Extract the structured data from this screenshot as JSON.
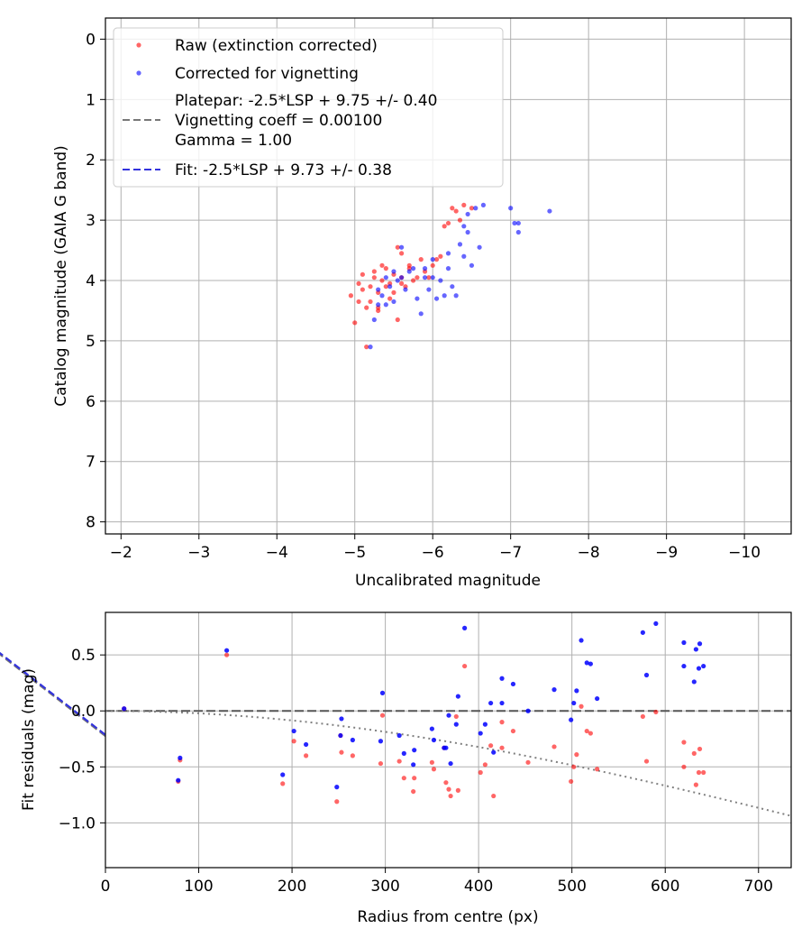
{
  "chart_data": [
    {
      "type": "scatter",
      "title": "",
      "xlabel": "Uncalibrated magnitude",
      "ylabel": "Catalog magnitude (GAIA G band)",
      "xlim": [
        -1.8,
        -10.6
      ],
      "ylim": [
        8.2,
        -0.35
      ],
      "x_inverted": true,
      "y_inverted": true,
      "grid": true,
      "xticks": [
        -2,
        -3,
        -4,
        -5,
        -6,
        -7,
        -8,
        -9,
        -10
      ],
      "xtick_labels": [
        "−2",
        "−3",
        "−4",
        "−5",
        "−6",
        "−7",
        "−8",
        "−9",
        "−10"
      ],
      "yticks": [
        0,
        1,
        2,
        3,
        4,
        5,
        6,
        7,
        8
      ],
      "ytick_labels": [
        "0",
        "1",
        "2",
        "3",
        "4",
        "5",
        "6",
        "7",
        "8"
      ],
      "legend_position": "top-left",
      "legend": [
        {
          "label": "Raw (extinction corrected)",
          "kind": "marker",
          "color": "#ff0000"
        },
        {
          "label": "Corrected for vignetting",
          "kind": "marker",
          "color": "#0000ff"
        },
        {
          "label": "Platepar: -2.5*LSP + 9.75 +/- 0.40",
          "label_line2": "Vignetting coeff = 0.00100",
          "label_line3": "Gamma = 1.00",
          "kind": "line",
          "color": "#777777"
        },
        {
          "label": "Fit: -2.5*LSP + 9.73 +/- 0.38",
          "kind": "line",
          "color": "#3333dd"
        }
      ],
      "lines": [
        {
          "name": "Platepar",
          "color": "#777777",
          "slope": -1,
          "intercept": 9.75
        },
        {
          "name": "Fit",
          "color": "#3333dd",
          "slope": -1,
          "intercept": 9.73
        }
      ],
      "series": [
        {
          "name": "Raw (extinction corrected)",
          "color": "#ff0000",
          "points": [
            [
              -4.95,
              4.25
            ],
            [
              -5.05,
              4.05
            ],
            [
              -5.1,
              4.15
            ],
            [
              -5.1,
              3.9
            ],
            [
              -5.2,
              4.1
            ],
            [
              -5.2,
              4.35
            ],
            [
              -5.25,
              3.85
            ],
            [
              -5.3,
              4.2
            ],
            [
              -5.3,
              4.45
            ],
            [
              -5.35,
              4.0
            ],
            [
              -5.4,
              4.1
            ],
            [
              -5.4,
              3.8
            ],
            [
              -5.45,
              4.3
            ],
            [
              -5.5,
              3.9
            ],
            [
              -5.55,
              3.45
            ],
            [
              -5.6,
              3.55
            ],
            [
              -5.6,
              3.95
            ],
            [
              -5.65,
              4.1
            ],
            [
              -5.7,
              3.8
            ],
            [
              -5.75,
              4.0
            ],
            [
              -5.85,
              3.65
            ],
            [
              -5.9,
              3.85
            ],
            [
              -5.95,
              3.95
            ],
            [
              -6.0,
              3.75
            ],
            [
              -6.1,
              3.6
            ],
            [
              -6.15,
              3.1
            ],
            [
              -6.2,
              3.05
            ],
            [
              -6.25,
              2.8
            ],
            [
              -6.3,
              2.85
            ],
            [
              -6.4,
              2.75
            ],
            [
              -6.5,
              2.8
            ],
            [
              -5.15,
              5.1
            ],
            [
              -5.55,
              4.65
            ],
            [
              -5.0,
              4.7
            ],
            [
              -5.3,
              4.5
            ],
            [
              -5.45,
              4.05
            ],
            [
              -5.05,
              4.35
            ],
            [
              -5.5,
              4.2
            ],
            [
              -5.6,
              4.05
            ],
            [
              -5.7,
              3.75
            ],
            [
              -5.8,
              3.95
            ],
            [
              -6.05,
              3.65
            ],
            [
              -5.35,
              3.75
            ],
            [
              -5.25,
              3.95
            ],
            [
              -5.15,
              4.45
            ],
            [
              -6.35,
              3.0
            ]
          ]
        },
        {
          "name": "Corrected for vignetting",
          "color": "#0000ff",
          "points": [
            [
              -5.2,
              5.1
            ],
            [
              -5.25,
              4.65
            ],
            [
              -5.3,
              4.4
            ],
            [
              -5.35,
              4.25
            ],
            [
              -5.4,
              3.95
            ],
            [
              -5.45,
              4.1
            ],
            [
              -5.5,
              3.85
            ],
            [
              -5.55,
              4.0
            ],
            [
              -5.6,
              3.45
            ],
            [
              -5.65,
              4.15
            ],
            [
              -5.7,
              3.85
            ],
            [
              -5.75,
              3.8
            ],
            [
              -5.8,
              4.3
            ],
            [
              -5.85,
              4.55
            ],
            [
              -5.9,
              3.95
            ],
            [
              -5.95,
              4.15
            ],
            [
              -6.0,
              3.65
            ],
            [
              -6.05,
              4.3
            ],
            [
              -6.1,
              4.0
            ],
            [
              -6.15,
              4.25
            ],
            [
              -6.2,
              3.55
            ],
            [
              -6.25,
              4.1
            ],
            [
              -6.3,
              4.25
            ],
            [
              -6.35,
              3.4
            ],
            [
              -6.4,
              3.1
            ],
            [
              -6.45,
              2.9
            ],
            [
              -6.5,
              3.75
            ],
            [
              -6.55,
              2.8
            ],
            [
              -6.6,
              3.45
            ],
            [
              -6.65,
              2.75
            ],
            [
              -7.0,
              2.8
            ],
            [
              -7.05,
              3.05
            ],
            [
              -7.1,
              3.2
            ],
            [
              -7.5,
              2.85
            ],
            [
              -7.1,
              3.05
            ],
            [
              -5.3,
              4.15
            ],
            [
              -5.5,
              4.35
            ],
            [
              -5.9,
              3.8
            ],
            [
              -6.0,
              3.95
            ],
            [
              -6.2,
              3.8
            ],
            [
              -5.4,
              4.4
            ],
            [
              -5.6,
              3.95
            ],
            [
              -6.4,
              3.6
            ],
            [
              -6.45,
              3.2
            ]
          ]
        }
      ]
    },
    {
      "type": "scatter",
      "title": "",
      "xlabel": "Radius from centre (px)",
      "ylabel": "Fit residuals (mag)",
      "xlim": [
        0,
        735
      ],
      "ylim": [
        -1.4,
        0.88
      ],
      "grid": true,
      "xticks": [
        0,
        100,
        200,
        300,
        400,
        500,
        600,
        700
      ],
      "xtick_labels": [
        "0",
        "100",
        "200",
        "300",
        "400",
        "500",
        "600",
        "700"
      ],
      "yticks": [
        0.5,
        0.0,
        -0.5,
        -1.0
      ],
      "ytick_labels": [
        "0.5",
        "0.0",
        "−0.5",
        "−1.0"
      ],
      "zero_line": {
        "y": 0,
        "color": "#555555"
      },
      "vignetting_curve": {
        "coeff": 0.001,
        "color": "#808080"
      },
      "series": [
        {
          "name": "Raw (extinction corrected)",
          "color": "#ff0000",
          "points": [
            [
              20,
              0.02
            ],
            [
              78,
              -0.63
            ],
            [
              80,
              -0.44
            ],
            [
              130,
              0.5
            ],
            [
              190,
              -0.65
            ],
            [
              202,
              -0.27
            ],
            [
              215,
              -0.4
            ],
            [
              248,
              -0.81
            ],
            [
              252,
              -0.22
            ],
            [
              253,
              -0.37
            ],
            [
              265,
              -0.4
            ],
            [
              295,
              -0.47
            ],
            [
              297,
              -0.04
            ],
            [
              315,
              -0.45
            ],
            [
              320,
              -0.6
            ],
            [
              330,
              -0.72
            ],
            [
              331,
              -0.6
            ],
            [
              350,
              -0.46
            ],
            [
              352,
              -0.52
            ],
            [
              363,
              -0.33
            ],
            [
              365,
              -0.64
            ],
            [
              368,
              -0.7
            ],
            [
              370,
              -0.76
            ],
            [
              376,
              -0.05
            ],
            [
              378,
              -0.71
            ],
            [
              385,
              0.4
            ],
            [
              402,
              -0.55
            ],
            [
              407,
              -0.48
            ],
            [
              413,
              -0.31
            ],
            [
              416,
              -0.76
            ],
            [
              425,
              -0.1
            ],
            [
              425,
              -0.33
            ],
            [
              437,
              -0.18
            ],
            [
              453,
              -0.46
            ],
            [
              481,
              -0.32
            ],
            [
              499,
              -0.63
            ],
            [
              502,
              -0.5
            ],
            [
              505,
              -0.39
            ],
            [
              510,
              0.04
            ],
            [
              516,
              -0.18
            ],
            [
              520,
              -0.2
            ],
            [
              527,
              -0.52
            ],
            [
              576,
              -0.05
            ],
            [
              580,
              -0.45
            ],
            [
              590,
              -0.01
            ],
            [
              620,
              -0.28
            ],
            [
              620,
              -0.5
            ],
            [
              631,
              -0.38
            ],
            [
              633,
              -0.66
            ],
            [
              636,
              -0.55
            ],
            [
              637,
              -0.34
            ],
            [
              641,
              -0.55
            ]
          ]
        },
        {
          "name": "Corrected for vignetting",
          "color": "#0000ff",
          "points": [
            [
              20,
              0.02
            ],
            [
              78,
              -0.62
            ],
            [
              80,
              -0.42
            ],
            [
              130,
              0.54
            ],
            [
              190,
              -0.57
            ],
            [
              202,
              -0.18
            ],
            [
              215,
              -0.3
            ],
            [
              248,
              -0.68
            ],
            [
              252,
              -0.22
            ],
            [
              253,
              -0.07
            ],
            [
              265,
              -0.26
            ],
            [
              295,
              -0.27
            ],
            [
              297,
              0.16
            ],
            [
              315,
              -0.22
            ],
            [
              320,
              -0.38
            ],
            [
              330,
              -0.48
            ],
            [
              331,
              -0.35
            ],
            [
              350,
              -0.16
            ],
            [
              352,
              -0.26
            ],
            [
              363,
              -0.33
            ],
            [
              365,
              -0.33
            ],
            [
              368,
              -0.04
            ],
            [
              370,
              -0.47
            ],
            [
              376,
              -0.12
            ],
            [
              378,
              0.13
            ],
            [
              385,
              0.74
            ],
            [
              402,
              -0.2
            ],
            [
              407,
              -0.12
            ],
            [
              413,
              0.07
            ],
            [
              416,
              -0.37
            ],
            [
              425,
              0.07
            ],
            [
              425,
              0.29
            ],
            [
              437,
              0.24
            ],
            [
              453,
              0.0
            ],
            [
              481,
              0.19
            ],
            [
              499,
              -0.08
            ],
            [
              502,
              0.07
            ],
            [
              505,
              0.18
            ],
            [
              510,
              0.63
            ],
            [
              516,
              0.43
            ],
            [
              520,
              0.42
            ],
            [
              527,
              0.11
            ],
            [
              576,
              0.7
            ],
            [
              580,
              0.32
            ],
            [
              590,
              0.78
            ],
            [
              620,
              0.61
            ],
            [
              620,
              0.4
            ],
            [
              631,
              0.26
            ],
            [
              633,
              0.55
            ],
            [
              636,
              0.38
            ],
            [
              637,
              0.6
            ],
            [
              641,
              0.4
            ]
          ]
        }
      ]
    }
  ]
}
